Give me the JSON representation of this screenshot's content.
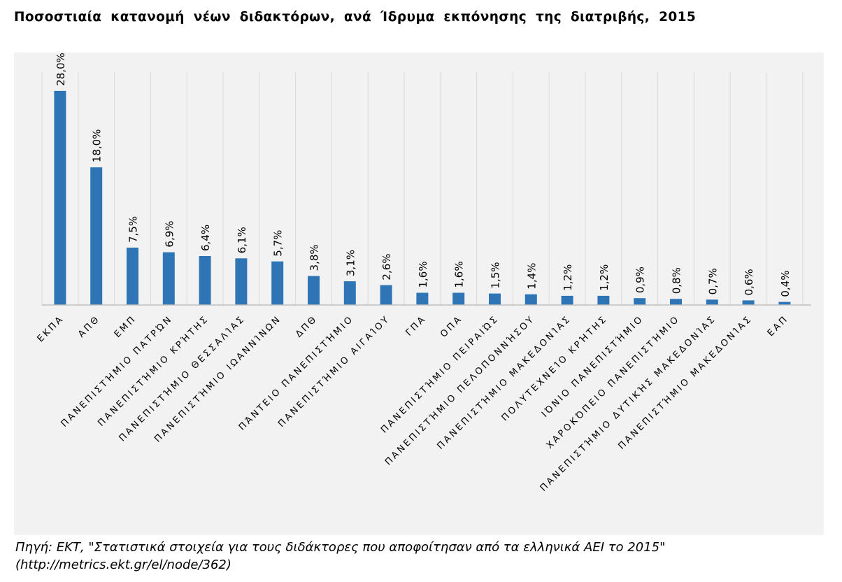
{
  "title": "Ποσοστιαία κατανομή νέων διδακτόρων, ανά Ίδρυμα εκπόνησης της διατριβής, 2015",
  "source": {
    "line1": "Πηγή: ΕΚΤ, \"Στατιστικά στοιχεία για τους διδάκτορες που αποφοίτησαν από τα ελληνικά ΑΕΙ το 2015\"",
    "line2": "(http://metrics.ekt.gr/el/node/362)"
  },
  "colors": {
    "bar": "#2e75b6",
    "background": "#f2f2f2",
    "gridline": "#d9d9d9",
    "axis": "#bfbfbf",
    "text": "#000000"
  },
  "chart_data": {
    "type": "bar",
    "title": "Ποσοστιαία κατανομή νέων διδακτόρων, ανά Ίδρυμα εκπόνησης της διατριβής, 2015",
    "xlabel": "",
    "ylabel": "",
    "unit": "%",
    "ylim": [
      0,
      30
    ],
    "grid": "vertical",
    "legend": "none",
    "categories": [
      "ΕΚΠΑ",
      "ΑΠΘ",
      "ΕΜΠ",
      "ΠΑΝΕΠΙΣΤΉΜΙΟ ΠΑΤΡΏΝ",
      "ΠΑΝΕΠΙΣΤΉΜΙΟ ΚΡΉΤΗΣ",
      "ΠΑΝΕΠΙΣΤΉΜΙΟ ΘΕΣΣΑΛΊΑΣ",
      "ΠΑΝΕΠΙΣΤΉΜΙΟ ΙΩΑΝΝΊΝΩΝ",
      "ΔΠΘ",
      "ΠΆΝΤΕΙΟ ΠΑΝΕΠΙΣΤΉΜΙΟ",
      "ΠΑΝΕΠΙΣΤΉΜΙΟ ΑΙΓΑΊΟΥ",
      "ΓΠΑ",
      "ΟΠΑ",
      "ΠΑΝΕΠΙΣΤΉΜΙΟ ΠΕΙΡΑΙΏΣ",
      "ΠΑΝΕΠΙΣΤΉΜΙΟ ΠΕΛΟΠΟΝΝΉΣΟΥ",
      "ΠΑΝΕΠΙΣΤΉΜΙΟ ΜΑΚΕΔΟΝΊΑΣ",
      "ΠΟΛΥΤΕΧΝΕΊΟ ΚΡΉΤΗΣ",
      "ΙΌΝΙΟ ΠΑΝΕΠΙΣΤΉΜΙΟ",
      "ΧΑΡΟΚΌΠΕΙΟ ΠΑΝΕΠΙΣΤΉΜΙΟ",
      "ΠΑΝΕΠΙΣΤΉΜΙΟ ΔΥΤΙΚΉΣ ΜΑΚΕΔΟΝΊΑΣ",
      "ΠΑΝΕΠΙΣΤΉΜΙΟ ΜΑΚΕΔΟΝΊΑΣ",
      "ΕΑΠ"
    ],
    "values": [
      28.0,
      18.0,
      7.5,
      6.9,
      6.4,
      6.1,
      5.7,
      3.8,
      3.1,
      2.6,
      1.6,
      1.6,
      1.5,
      1.4,
      1.2,
      1.2,
      0.9,
      0.8,
      0.7,
      0.6,
      0.4
    ],
    "data_labels": [
      "28,0%",
      "18,0%",
      "7,5%",
      "6,9%",
      "6,4%",
      "6,1%",
      "5,7%",
      "3,8%",
      "3,1%",
      "2,6%",
      "1,6%",
      "1,6%",
      "1,5%",
      "1,4%",
      "1,2%",
      "1,2%",
      "0,9%",
      "0,8%",
      "0,7%",
      "0,6%",
      "0,4%"
    ]
  }
}
